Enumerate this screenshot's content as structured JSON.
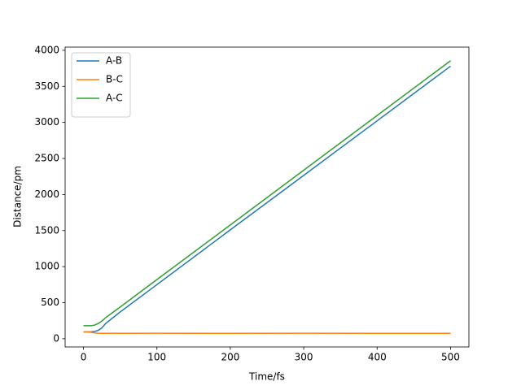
{
  "chart_data": {
    "type": "line",
    "x": [
      0,
      5,
      10,
      15,
      20,
      25,
      30,
      40,
      50,
      100,
      200,
      300,
      400,
      500
    ],
    "series": [
      {
        "name": "A-B",
        "color": "#1f77b4",
        "values": [
          95,
          95,
          96,
          100,
          115,
          150,
          210,
          290,
          371,
          750,
          1510,
          2265,
          3022,
          3780
        ]
      },
      {
        "name": "B-C",
        "color": "#ff7f0e",
        "values": [
          95,
          94,
          90,
          80,
          76,
          75,
          75,
          76,
          75,
          76,
          75,
          76,
          75,
          75
        ]
      },
      {
        "name": "A-C",
        "color": "#2ca02c",
        "values": [
          180,
          180,
          181,
          188,
          210,
          245,
          290,
          365,
          440,
          820,
          1578,
          2337,
          3096,
          3855
        ]
      }
    ],
    "xlabel": "Time/fs",
    "ylabel": "Distance/pm",
    "xlim": [
      -25,
      525
    ],
    "ylim": [
      -114,
      4044
    ],
    "xticks": [
      0,
      100,
      200,
      300,
      400,
      500
    ],
    "yticks": [
      0,
      500,
      1000,
      1500,
      2000,
      2500,
      3000,
      3500,
      4000
    ],
    "legend": "upper left"
  }
}
